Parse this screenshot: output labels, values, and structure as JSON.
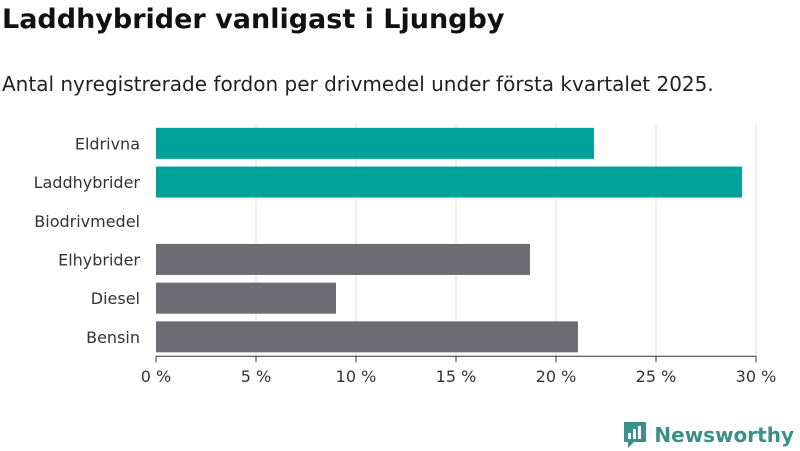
{
  "title": "Laddhybrider vanligast i Ljungby",
  "subtitle": "Antal nyregistrerade fordon per drivmedel under första kvartalet 2025.",
  "brand": {
    "name": "Newsworthy"
  },
  "colors": {
    "highlight": "#00a39a",
    "other": "#6d6c72",
    "grid": "#dddddd",
    "axis": "#333333",
    "brand": "#3d8f8b"
  },
  "chart_data": {
    "type": "bar",
    "orientation": "horizontal",
    "categories": [
      "Eldrivna",
      "Laddhybrider",
      "Biodrivmedel",
      "Elhybrider",
      "Diesel",
      "Bensin"
    ],
    "values": [
      21.9,
      29.3,
      0,
      18.7,
      9.0,
      21.1
    ],
    "bar_colors": [
      "#00a39a",
      "#00a39a",
      "#6d6c72",
      "#6d6c72",
      "#6d6c72",
      "#6d6c72"
    ],
    "xlim": [
      0,
      30
    ],
    "ticks": [
      0,
      5,
      10,
      15,
      20,
      25,
      30
    ],
    "tick_labels": [
      "0 %",
      "5 %",
      "10 %",
      "15 %",
      "20 %",
      "25 %",
      "30 %"
    ],
    "grid": true,
    "xlabel": "",
    "ylabel": ""
  }
}
